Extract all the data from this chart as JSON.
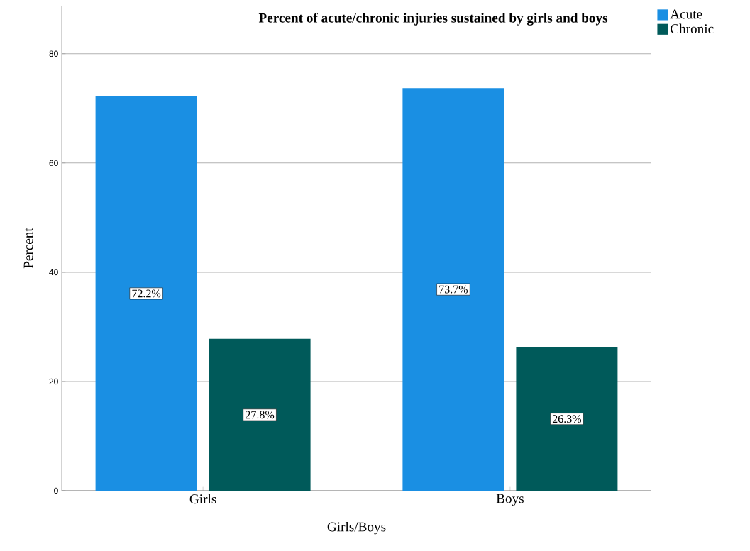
{
  "chart_data": {
    "type": "bar",
    "title": "Percent of acute/chronic injuries sustained by girls and boys",
    "xlabel": "Girls/Boys",
    "ylabel": "Percent",
    "categories": [
      "Girls",
      "Boys"
    ],
    "series": [
      {
        "name": "Acute",
        "color": "#1a8fe3",
        "values": [
          72.2,
          73.7
        ],
        "value_labels": [
          "72.2%",
          "73.7%"
        ]
      },
      {
        "name": "Chronic",
        "color": "#005a5a",
        "values": [
          27.8,
          26.3
        ],
        "value_labels": [
          "27.8%",
          "26.3%"
        ]
      }
    ],
    "ylim": [
      0,
      88.8
    ],
    "yticks": [
      0,
      20,
      40,
      60,
      80
    ],
    "grid": "y",
    "legend": "top right"
  }
}
